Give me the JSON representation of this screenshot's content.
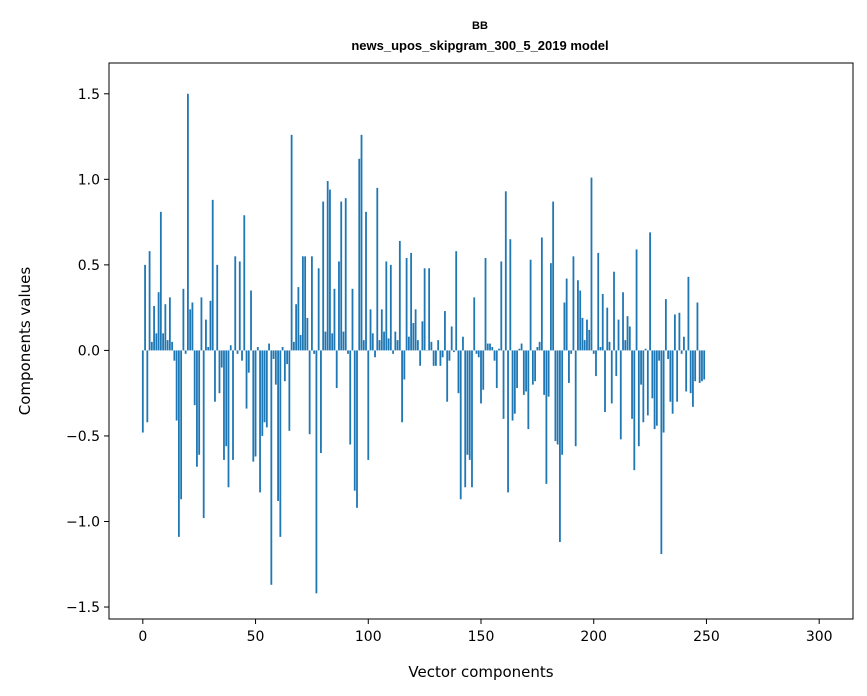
{
  "chart_data": {
    "type": "bar",
    "suptitle": "BB",
    "title": "news_upos_skipgram_300_5_2019 model",
    "xlabel": "Vector components",
    "ylabel": "Components values",
    "xlim": [
      -15,
      315
    ],
    "ylim": [
      -1.57,
      1.68
    ],
    "xticks": [
      0,
      50,
      100,
      150,
      200,
      250,
      300
    ],
    "xtick_labels": [
      "0",
      "50",
      "100",
      "150",
      "200",
      "250",
      "300"
    ],
    "yticks": [
      -1.5,
      -1.0,
      -0.5,
      0.0,
      0.5,
      1.0,
      1.5
    ],
    "ytick_labels": [
      "−1.5",
      "−1.0",
      "−0.5",
      "0.0",
      "0.5",
      "1.0",
      "1.5"
    ],
    "bar_color": "#1f77b4",
    "grid": false,
    "legend": false,
    "values": [
      -0.48,
      0.5,
      -0.42,
      0.58,
      0.05,
      0.26,
      0.1,
      0.34,
      0.81,
      0.1,
      0.27,
      0.06,
      0.31,
      0.05,
      -0.06,
      -0.41,
      -1.09,
      -0.87,
      0.36,
      -0.02,
      1.5,
      0.24,
      0.28,
      -0.32,
      -0.68,
      -0.61,
      0.31,
      -0.98,
      0.18,
      0.02,
      0.29,
      0.88,
      -0.3,
      0.5,
      -0.25,
      -0.1,
      -0.64,
      -0.56,
      -0.8,
      0.03,
      -0.64,
      0.55,
      -0.02,
      0.52,
      -0.06,
      0.79,
      -0.34,
      -0.13,
      0.35,
      -0.65,
      -0.62,
      0.02,
      -0.83,
      -0.5,
      -0.42,
      -0.45,
      0.04,
      -1.37,
      -0.05,
      -0.2,
      -0.88,
      -1.09,
      0.02,
      -0.18,
      -0.08,
      -0.47,
      1.26,
      0.05,
      0.27,
      0.37,
      0.09,
      0.55,
      0.55,
      0.19,
      -0.49,
      0.55,
      -0.02,
      -1.42,
      0.48,
      -0.6,
      0.87,
      0.11,
      0.99,
      0.94,
      0.1,
      0.36,
      -0.22,
      0.52,
      0.87,
      0.11,
      0.89,
      -0.02,
      -0.55,
      0.36,
      -0.82,
      -0.92,
      1.12,
      1.26,
      0.06,
      0.81,
      -0.64,
      0.24,
      0.1,
      -0.04,
      0.95,
      0.06,
      0.24,
      0.11,
      0.52,
      0.07,
      0.5,
      -0.02,
      0.11,
      0.06,
      0.64,
      -0.42,
      -0.17,
      0.54,
      0.08,
      0.57,
      0.16,
      0.24,
      0.06,
      -0.09,
      0.17,
      0.48,
      0.0,
      0.48,
      0.05,
      -0.09,
      -0.09,
      0.06,
      -0.09,
      -0.04,
      0.23,
      -0.3,
      -0.06,
      0.14,
      -0.01,
      0.58,
      -0.25,
      -0.87,
      0.08,
      -0.8,
      -0.61,
      -0.64,
      -0.8,
      0.31,
      -0.02,
      -0.04,
      -0.31,
      -0.23,
      0.54,
      0.04,
      0.04,
      0.02,
      -0.06,
      -0.22,
      0.01,
      0.52,
      -0.4,
      0.93,
      -0.83,
      0.65,
      -0.41,
      -0.37,
      -0.22,
      0.01,
      0.04,
      -0.26,
      -0.24,
      -0.46,
      0.53,
      -0.2,
      -0.18,
      0.02,
      0.05,
      0.66,
      -0.26,
      -0.78,
      -0.27,
      0.51,
      0.87,
      -0.53,
      -0.55,
      -1.12,
      -0.61,
      0.28,
      0.42,
      -0.19,
      -0.02,
      0.55,
      -0.56,
      0.41,
      0.35,
      0.19,
      0.06,
      0.18,
      0.12,
      1.01,
      -0.02,
      -0.15,
      0.57,
      0.02,
      0.33,
      -0.36,
      0.25,
      0.05,
      -0.31,
      0.46,
      -0.15,
      0.18,
      -0.52,
      0.34,
      0.06,
      0.2,
      0.14,
      -0.4,
      -0.7,
      0.59,
      -0.56,
      -0.2,
      -0.42,
      0.01,
      -0.38,
      0.69,
      -0.28,
      -0.46,
      -0.44,
      -0.06,
      -1.19,
      -0.48,
      0.3,
      -0.05,
      -0.3,
      -0.37,
      0.21,
      -0.3,
      0.22,
      -0.02,
      0.08,
      -0.24,
      0.43,
      -0.25,
      -0.33,
      -0.18,
      0.28,
      -0.19,
      -0.18,
      -0.17
    ]
  }
}
